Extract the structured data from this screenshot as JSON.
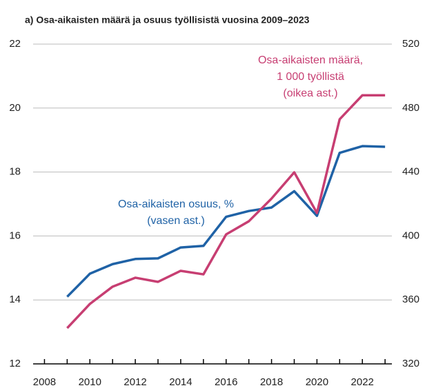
{
  "chart_data": {
    "type": "line",
    "title": "a) Osa-aikaisten määrä ja osuus työllisistä vuosina 2009–2023",
    "x": [
      2009,
      2010,
      2011,
      2012,
      2013,
      2014,
      2015,
      2016,
      2017,
      2018,
      2019,
      2020,
      2021,
      2022,
      2023
    ],
    "series": [
      {
        "name": "Osa-aikaisten osuus, %",
        "color": "#1f62a6",
        "axis": "y",
        "values": [
          14.1,
          14.82,
          15.12,
          15.28,
          15.3,
          15.64,
          15.69,
          16.6,
          16.78,
          16.89,
          17.4,
          16.63,
          18.6,
          18.81,
          18.79
        ]
      },
      {
        "name": "Osa-aikaisten määrä, 1 000 työllistä",
        "color": "#c73e72",
        "axis": "y2",
        "values": [
          342.4,
          357.5,
          368.3,
          373.9,
          371.3,
          378.2,
          376,
          401,
          409.2,
          423.4,
          439.8,
          414.4,
          473,
          488,
          488
        ]
      }
    ],
    "annotations": [
      {
        "lines": [
          "Osa-aikaisten osuus, %",
          "(vasen ast.)"
        ],
        "series": 0
      },
      {
        "lines": [
          "Osa-aikaisten määrä,",
          "1 000 työllistä",
          "(oikea ast.)"
        ],
        "series": 1
      }
    ],
    "xlim": [
      2007.5,
      2023.3
    ],
    "xticks": [
      2008,
      2010,
      2012,
      2014,
      2016,
      2018,
      2020,
      2022
    ],
    "xminor_ticks": [
      2009,
      2011,
      2013,
      2015,
      2017,
      2019,
      2021,
      2023
    ],
    "ylim": [
      12,
      22
    ],
    "yticks": [
      12,
      14,
      16,
      18,
      20,
      22
    ],
    "y2lim": [
      320,
      520
    ],
    "y2ticks": [
      320,
      360,
      400,
      440,
      480,
      520
    ],
    "grid": true
  }
}
